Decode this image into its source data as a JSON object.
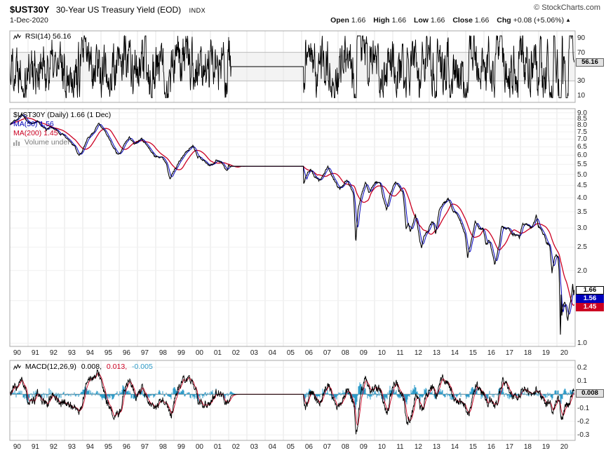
{
  "header": {
    "symbol": "$UST30Y",
    "title": "30-Year US Treasury Yield (EOD)",
    "exchange": "INDX",
    "credit": "© StockCharts.com",
    "date": "1-Dec-2020",
    "quote": {
      "open_label": "Open",
      "open": "1.66",
      "high_label": "High",
      "high": "1.66",
      "low_label": "Low",
      "low": "1.66",
      "close_label": "Close",
      "close": "1.66",
      "chg_label": "Chg",
      "chg": "+0.08 (+5.06%)",
      "chg_dir": "▲"
    }
  },
  "rsi_panel": {
    "legend": "RSI(14) 56.16",
    "last_value": "56.16",
    "axis_labels": [
      "90",
      "70",
      "30",
      "10"
    ]
  },
  "main_panel": {
    "legend_price": "$UST30Y (Daily) 1.66 (1 Dec)",
    "legend_ma50": "MA(50) 1.56",
    "legend_ma200": "MA(200) 1.45",
    "legend_volume": "Volume undef",
    "price_box": "1.66",
    "ma50_box": "1.56",
    "ma200_box": "1.45",
    "axis_labels": [
      "9.0",
      "8.5",
      "8.0",
      "7.5",
      "7.0",
      "6.5",
      "6.0",
      "5.5",
      "5.0",
      "4.5",
      "4.0",
      "3.5",
      "3.0",
      "2.5",
      "2.0",
      "1.5",
      "1.0"
    ]
  },
  "macd_panel": {
    "legend_name": "MACD(12,26,9)",
    "legend_macd": "0.008,",
    "legend_signal": "0.013,",
    "legend_hist": "-0.005",
    "last_value": "0.008",
    "axis_labels": [
      "0.2",
      "0.1",
      "0.0",
      "-0.1",
      "-0.2",
      "-0.3"
    ]
  },
  "x_axis": {
    "years": [
      "90",
      "91",
      "92",
      "93",
      "94",
      "95",
      "96",
      "97",
      "98",
      "99",
      "00",
      "01",
      "02",
      "03",
      "04",
      "05",
      "06",
      "07",
      "08",
      "09",
      "10",
      "11",
      "12",
      "13",
      "14",
      "15",
      "16",
      "17",
      "18",
      "19",
      "20"
    ]
  },
  "colors": {
    "price": "#000000",
    "ma50": "#0000BB",
    "ma200": "#CC0022",
    "hist": "#2E9BC8",
    "grid": "#E6E6E6",
    "panel_border": "#A8A8A8",
    "volume": "#888888"
  },
  "chart_data": {
    "type": "line",
    "x_range": [
      1990,
      2021
    ],
    "x_unit": "year",
    "panels": [
      {
        "id": "rsi",
        "label": "RSI(14)",
        "ylim": [
          0,
          100
        ],
        "overbought": 70,
        "oversold": 30,
        "last": 56.16,
        "flat_gap": {
          "x": [
            2002.12,
            2006.1
          ],
          "value": 50
        }
      },
      {
        "id": "price",
        "label": "$UST30Y daily close with MA(50) and MA(200)",
        "scale": "log",
        "ylim": [
          1.0,
          9.0
        ],
        "series": [
          {
            "name": "$UST30Y",
            "color": "#000000",
            "last": 1.66
          },
          {
            "name": "MA(50)",
            "color": "#0000BB",
            "last": 1.56
          },
          {
            "name": "MA(200)",
            "color": "#CC0022",
            "last": 1.45
          }
        ],
        "flat_gap": {
          "x": [
            2002.12,
            2006.1
          ],
          "value": 5.4
        },
        "keypoints": [
          [
            1990.0,
            8.0
          ],
          [
            1990.2,
            8.3
          ],
          [
            1990.45,
            8.5
          ],
          [
            1990.65,
            8.9
          ],
          [
            1990.8,
            8.6
          ],
          [
            1991.0,
            8.25
          ],
          [
            1991.2,
            8.1
          ],
          [
            1991.5,
            8.3
          ],
          [
            1991.8,
            7.9
          ],
          [
            1992.0,
            7.6
          ],
          [
            1992.2,
            7.85
          ],
          [
            1992.5,
            7.7
          ],
          [
            1992.75,
            7.35
          ],
          [
            1993.0,
            7.25
          ],
          [
            1993.3,
            6.85
          ],
          [
            1993.55,
            6.55
          ],
          [
            1993.8,
            5.95
          ],
          [
            1994.0,
            6.3
          ],
          [
            1994.3,
            7.1
          ],
          [
            1994.6,
            7.5
          ],
          [
            1994.88,
            8.15
          ],
          [
            1995.05,
            7.85
          ],
          [
            1995.3,
            7.35
          ],
          [
            1995.6,
            6.6
          ],
          [
            1995.9,
            6.1
          ],
          [
            1996.05,
            6.05
          ],
          [
            1996.3,
            6.75
          ],
          [
            1996.55,
            7.15
          ],
          [
            1996.8,
            6.7
          ],
          [
            1997.0,
            6.85
          ],
          [
            1997.2,
            7.1
          ],
          [
            1997.5,
            6.6
          ],
          [
            1997.8,
            6.15
          ],
          [
            1998.0,
            5.9
          ],
          [
            1998.3,
            5.95
          ],
          [
            1998.6,
            5.55
          ],
          [
            1998.78,
            4.75
          ],
          [
            1998.95,
            5.1
          ],
          [
            1999.3,
            5.65
          ],
          [
            1999.6,
            6.1
          ],
          [
            1999.9,
            6.45
          ],
          [
            2000.05,
            6.6
          ],
          [
            2000.3,
            5.95
          ],
          [
            2000.6,
            5.75
          ],
          [
            2000.9,
            5.45
          ],
          [
            2001.1,
            5.5
          ],
          [
            2001.35,
            5.75
          ],
          [
            2001.6,
            5.6
          ],
          [
            2001.8,
            5.3
          ],
          [
            2001.92,
            5.15
          ],
          [
            2002.0,
            5.45
          ],
          [
            2002.12,
            5.4
          ],
          [
            2006.1,
            4.55
          ],
          [
            2006.3,
            5.05
          ],
          [
            2006.5,
            5.25
          ],
          [
            2006.7,
            4.9
          ],
          [
            2006.95,
            4.7
          ],
          [
            2007.1,
            4.85
          ],
          [
            2007.45,
            5.35
          ],
          [
            2007.7,
            4.85
          ],
          [
            2007.95,
            4.5
          ],
          [
            2008.1,
            4.35
          ],
          [
            2008.35,
            4.6
          ],
          [
            2008.5,
            4.7
          ],
          [
            2008.7,
            4.4
          ],
          [
            2008.85,
            4.1
          ],
          [
            2008.97,
            2.6
          ],
          [
            2009.1,
            3.6
          ],
          [
            2009.3,
            4.2
          ],
          [
            2009.5,
            4.6
          ],
          [
            2009.7,
            4.2
          ],
          [
            2009.9,
            4.5
          ],
          [
            2010.1,
            4.65
          ],
          [
            2010.3,
            4.6
          ],
          [
            2010.45,
            4.05
          ],
          [
            2010.65,
            3.55
          ],
          [
            2010.85,
            4.1
          ],
          [
            2011.0,
            4.4
          ],
          [
            2011.15,
            4.6
          ],
          [
            2011.35,
            4.45
          ],
          [
            2011.55,
            4.2
          ],
          [
            2011.73,
            2.95
          ],
          [
            2011.85,
            3.15
          ],
          [
            2011.95,
            2.9
          ],
          [
            2012.1,
            3.1
          ],
          [
            2012.25,
            3.4
          ],
          [
            2012.5,
            2.6
          ],
          [
            2012.58,
            2.48
          ],
          [
            2012.7,
            2.8
          ],
          [
            2012.9,
            2.85
          ],
          [
            2013.05,
            3.1
          ],
          [
            2013.2,
            3.2
          ],
          [
            2013.35,
            2.85
          ],
          [
            2013.55,
            3.6
          ],
          [
            2013.75,
            3.75
          ],
          [
            2013.95,
            3.9
          ],
          [
            2014.05,
            3.95
          ],
          [
            2014.3,
            3.5
          ],
          [
            2014.55,
            3.4
          ],
          [
            2014.8,
            3.1
          ],
          [
            2014.97,
            2.8
          ],
          [
            2015.1,
            2.25
          ],
          [
            2015.3,
            2.65
          ],
          [
            2015.52,
            3.2
          ],
          [
            2015.75,
            2.95
          ],
          [
            2015.95,
            3.0
          ],
          [
            2016.1,
            2.6
          ],
          [
            2016.3,
            2.65
          ],
          [
            2016.52,
            2.2
          ],
          [
            2016.58,
            2.1
          ],
          [
            2016.7,
            2.3
          ],
          [
            2016.85,
            2.6
          ],
          [
            2016.97,
            3.05
          ],
          [
            2017.1,
            3.0
          ],
          [
            2017.3,
            3.0
          ],
          [
            2017.5,
            2.85
          ],
          [
            2017.7,
            2.8
          ],
          [
            2017.95,
            2.75
          ],
          [
            2018.1,
            3.1
          ],
          [
            2018.25,
            3.15
          ],
          [
            2018.45,
            3.05
          ],
          [
            2018.6,
            3.0
          ],
          [
            2018.78,
            3.2
          ],
          [
            2018.87,
            3.4
          ],
          [
            2018.97,
            3.05
          ],
          [
            2019.1,
            3.0
          ],
          [
            2019.25,
            2.85
          ],
          [
            2019.45,
            2.6
          ],
          [
            2019.6,
            2.55
          ],
          [
            2019.73,
            1.95
          ],
          [
            2019.85,
            2.2
          ],
          [
            2019.95,
            2.35
          ],
          [
            2020.05,
            2.3
          ],
          [
            2020.12,
            2.0
          ],
          [
            2020.17,
            1.3
          ],
          [
            2020.2,
            0.99
          ],
          [
            2020.23,
            1.6
          ],
          [
            2020.27,
            1.3
          ],
          [
            2020.33,
            1.42
          ],
          [
            2020.42,
            1.45
          ],
          [
            2020.5,
            1.4
          ],
          [
            2020.6,
            1.22
          ],
          [
            2020.7,
            1.45
          ],
          [
            2020.8,
            1.6
          ],
          [
            2020.87,
            1.75
          ],
          [
            2020.92,
            1.57
          ],
          [
            2020.95,
            1.66
          ]
        ]
      },
      {
        "id": "macd",
        "label": "MACD(12,26,9)",
        "ylim": [
          -0.3,
          0.2
        ],
        "macd_last": 0.008,
        "signal_last": 0.013,
        "hist_last": -0.005,
        "flat_gap": {
          "x": [
            2002.12,
            2006.1
          ],
          "value": 0
        }
      }
    ]
  }
}
